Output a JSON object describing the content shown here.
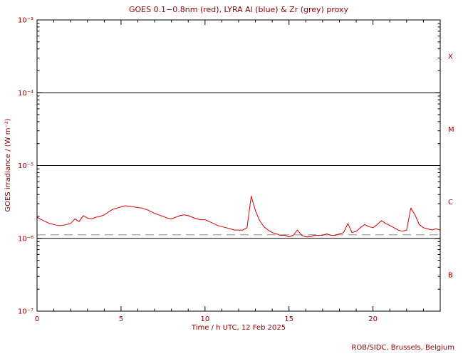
{
  "title": "GOES 0.1−0.8nm (red), LYRA Al (blue) & Zr (grey) proxy",
  "credit": "ROB/SIDC, Brussels, Belgium",
  "chart_data": {
    "type": "line",
    "title": "GOES 0.1−0.8nm (red), LYRA Al (blue) & Zr (grey) proxy",
    "xlabel": "Time / h UTC, 12 Feb 2025",
    "ylabel": "GOES irradiance / (W m⁻²)",
    "x_range_hours": [
      0,
      24
    ],
    "y_range_w_m2": [
      1e-07,
      0.001
    ],
    "y_scale": "log",
    "grid": false,
    "x_tick_hours": [
      0,
      5,
      10,
      15,
      20
    ],
    "x_minor_step_hours": 1,
    "y_tick_labels": [
      "10⁻³",
      "10⁻⁴",
      "10⁻⁵",
      "10⁻⁶",
      "10⁻⁷"
    ],
    "y_tick_exponents": [
      -3,
      -4,
      -5,
      -6,
      -7
    ],
    "flare_class_labels": [
      "X",
      "M",
      "C",
      "B"
    ],
    "class_boundaries_w_m2": [
      0.0001,
      1e-05,
      1e-06
    ],
    "reference_lines": [
      {
        "name": "LYRA Zr proxy",
        "color": "#aaaaaa",
        "style": "long-dash",
        "value_w_m2": 1.12e-06
      }
    ],
    "series": [
      {
        "name": "GOES 0.1−0.8nm",
        "color": "#d40000",
        "x_start_hour": 0,
        "x_step_hour": 0.25,
        "values_uW_m2": [
          1.95,
          1.8,
          1.7,
          1.6,
          1.55,
          1.5,
          1.5,
          1.55,
          1.6,
          1.85,
          1.7,
          2.05,
          1.9,
          1.85,
          1.95,
          2.0,
          2.1,
          2.3,
          2.5,
          2.6,
          2.7,
          2.8,
          2.75,
          2.7,
          2.65,
          2.6,
          2.5,
          2.35,
          2.2,
          2.1,
          2.0,
          1.9,
          1.85,
          1.95,
          2.05,
          2.1,
          2.05,
          1.95,
          1.85,
          1.8,
          1.8,
          1.7,
          1.6,
          1.5,
          1.45,
          1.4,
          1.35,
          1.3,
          1.3,
          1.3,
          1.4,
          3.8,
          2.4,
          1.75,
          1.45,
          1.3,
          1.2,
          1.15,
          1.1,
          1.1,
          1.05,
          1.1,
          1.3,
          1.1,
          1.05,
          1.05,
          1.1,
          1.1,
          1.1,
          1.15,
          1.1,
          1.1,
          1.15,
          1.2,
          1.6,
          1.2,
          1.25,
          1.4,
          1.55,
          1.45,
          1.4,
          1.55,
          1.75,
          1.6,
          1.5,
          1.4,
          1.3,
          1.25,
          1.3,
          2.6,
          2.1,
          1.55,
          1.4,
          1.35,
          1.3,
          1.35,
          1.3
        ]
      }
    ]
  },
  "colors": {
    "curve_red": "#d40000",
    "proxy_grey": "#aaaaaa",
    "axis_black": "#000000",
    "text_dark_red": "#8b0000"
  }
}
